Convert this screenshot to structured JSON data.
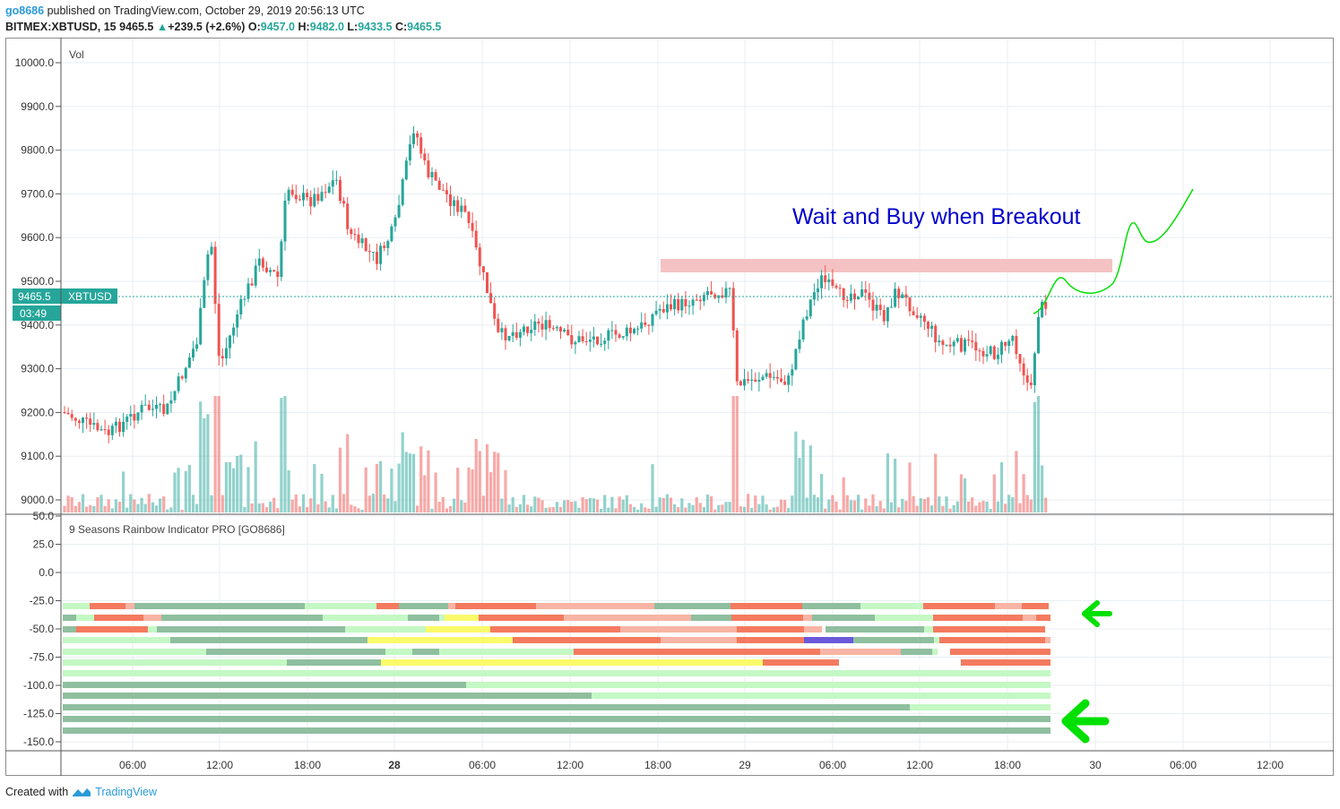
{
  "header": {
    "author": "go8686",
    "published": "published on TradingView.com, October 29, 2019 20:56:13 UTC",
    "symbol": "BITMEX:XBTUSD, 15",
    "last": "9465.5",
    "change": "+239.5 (+2.6%)",
    "o_label": "O:",
    "o": "9457.0",
    "h_label": "H:",
    "h": "9482.0",
    "l_label": "L:",
    "l": "9433.5",
    "c_label": "C:",
    "c": "9465.5"
  },
  "price_pane": {
    "vol_label": "Vol",
    "y_ticks": [
      "10000.0",
      "9900.0",
      "9800.0",
      "9700.0",
      "9600.0",
      "9500.0",
      "9400.0",
      "9300.0",
      "9200.0",
      "9100.0",
      "9000.0"
    ],
    "price_tag": "9465.5",
    "price_tag_symbol": "XBTUSD",
    "countdown": "03:49",
    "annotation": "Wait and Buy when Breakout"
  },
  "indicator_pane": {
    "title": "9 Seasons Rainbow Indicator PRO [GO8686]",
    "y_ticks": [
      "50.0",
      "25.0",
      "0.0",
      "-25.0",
      "-50.0",
      "-75.0",
      "-100.0",
      "-125.0",
      "-150.0"
    ]
  },
  "x_axis": {
    "ticks": [
      "06:00",
      "12:00",
      "18:00",
      "28",
      "06:00",
      "12:00",
      "18:00",
      "29",
      "06:00",
      "12:00",
      "18:00",
      "30",
      "06:00",
      "12:00"
    ]
  },
  "colors": {
    "bull": "#26a69a",
    "bear": "#ef5350",
    "annotation": "#0000cc",
    "arrow": "#00e000",
    "zone": "#f4c2c2"
  },
  "footer": {
    "created_with": "Created with",
    "brand": "TradingView"
  }
}
